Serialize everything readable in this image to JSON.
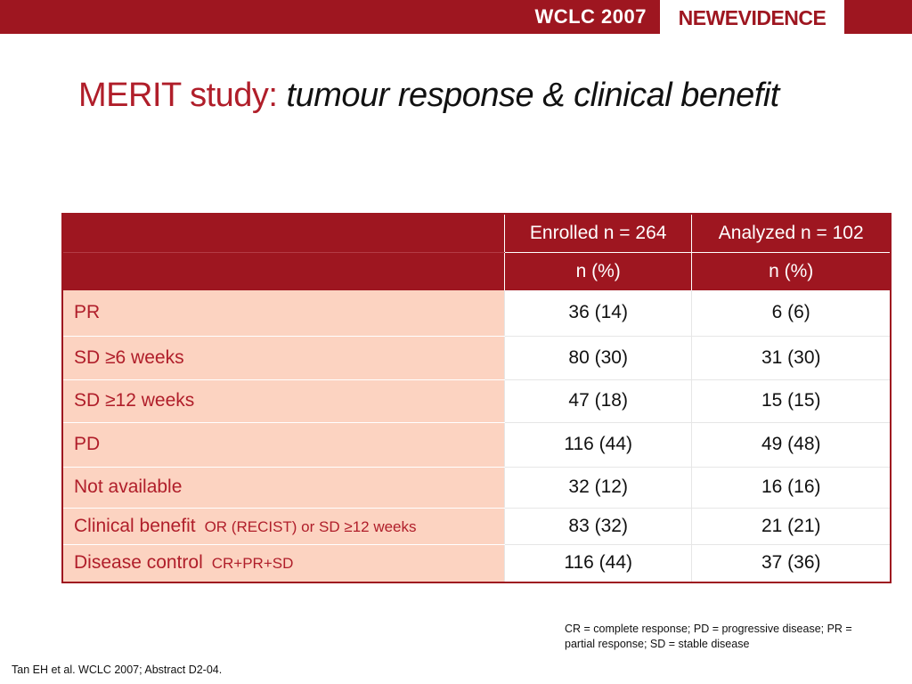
{
  "header": {
    "conference": "WCLC 2007",
    "logo": "NEWEVIDENCE"
  },
  "title": {
    "main": "MERIT study: ",
    "sub": "tumour response & clinical benefit"
  },
  "table": {
    "columns": [
      "Enrolled n = 264",
      "Analyzed n = 102"
    ],
    "units": [
      "n (%)",
      "n (%)"
    ],
    "rows": [
      {
        "label": "PR",
        "note": "",
        "enrolled": "36 (14)",
        "analyzed": "6 (6)"
      },
      {
        "label": "SD ≥6 weeks",
        "note": "",
        "enrolled": "80 (30)",
        "analyzed": "31 (30)"
      },
      {
        "label": "SD ≥12 weeks",
        "note": "",
        "enrolled": "47 (18)",
        "analyzed": "15 (15)"
      },
      {
        "label": "PD",
        "note": "",
        "enrolled": "116 (44)",
        "analyzed": "49 (48)"
      },
      {
        "label": "Not available",
        "note": "",
        "enrolled": "32 (12)",
        "analyzed": "16 (16)"
      },
      {
        "label": "Clinical benefit",
        "note": "OR (RECIST) or SD ≥12 weeks",
        "enrolled": "83 (32)",
        "analyzed": "21 (21)"
      },
      {
        "label": "Disease control",
        "note": "CR+PR+SD",
        "enrolled": "116 (44)",
        "analyzed": "37 (36)"
      }
    ]
  },
  "footnote": "CR = complete response; PD = progressive disease; PR = partial response; SD = stable disease",
  "source": "Tan EH et al. WCLC 2007; Abstract D2-04.",
  "colors": {
    "brand_red": "#9e1620",
    "title_red": "#b01e2a",
    "label_fill": "#fcd3c1"
  }
}
